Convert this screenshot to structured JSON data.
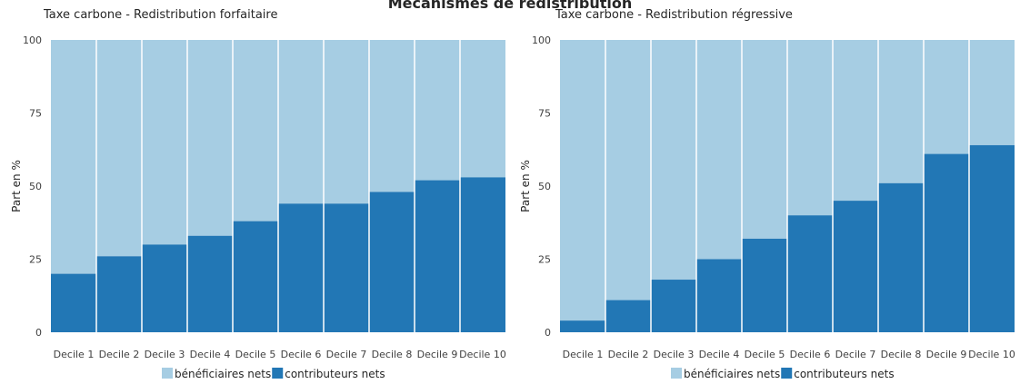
{
  "title": "Mécanismes de redistribution",
  "colors": {
    "beneficiaires": "#a6cde3",
    "contributeurs": "#2277b5"
  },
  "chart_data": [
    {
      "type": "bar",
      "title": "Taxe carbone  - Redistribution forfaitaire",
      "xlabel": "",
      "ylabel": "Part en %",
      "ylim": [
        0,
        100
      ],
      "yticks": [
        0,
        25,
        50,
        75,
        100
      ],
      "stacked": true,
      "grid": false,
      "legend": "bottom",
      "categories": [
        "Decile 1",
        "Decile 2",
        "Decile 3",
        "Decile 4",
        "Decile 5",
        "Decile 6",
        "Decile 7",
        "Decile 8",
        "Decile 9",
        "Decile 10"
      ],
      "series": [
        {
          "name": "contributeurs nets",
          "values": [
            20,
            26,
            30,
            33,
            38,
            44,
            44,
            48,
            52,
            53
          ]
        },
        {
          "name": "bénéficiaires nets",
          "values": [
            80,
            74,
            70,
            67,
            62,
            56,
            56,
            52,
            48,
            47
          ]
        }
      ]
    },
    {
      "type": "bar",
      "title": "Taxe carbone  - Redistribution régressive",
      "xlabel": "",
      "ylabel": "Part en %",
      "ylim": [
        0,
        100
      ],
      "yticks": [
        0,
        25,
        50,
        75,
        100
      ],
      "stacked": true,
      "grid": false,
      "legend": "bottom",
      "categories": [
        "Decile 1",
        "Decile 2",
        "Decile 3",
        "Decile 4",
        "Decile 5",
        "Decile 6",
        "Decile 7",
        "Decile 8",
        "Decile 9",
        "Decile 10"
      ],
      "series": [
        {
          "name": "contributeurs nets",
          "values": [
            4,
            11,
            18,
            25,
            32,
            40,
            45,
            51,
            61,
            64
          ]
        },
        {
          "name": "bénéficiaires nets",
          "values": [
            96,
            89,
            82,
            75,
            68,
            60,
            55,
            49,
            39,
            36
          ]
        }
      ]
    }
  ]
}
